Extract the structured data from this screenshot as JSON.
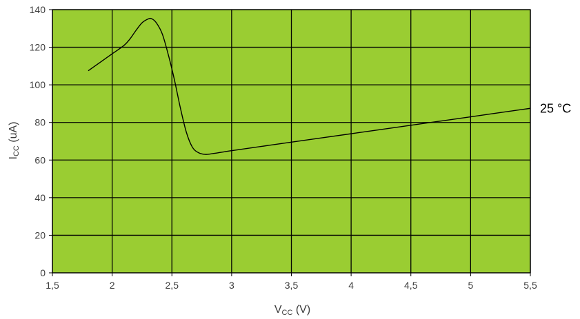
{
  "chart_data": {
    "type": "line",
    "title": "",
    "xlabel_main": "V",
    "xlabel_sub": "CC",
    "xlabel_unit": " (V)",
    "ylabel_main": "I",
    "ylabel_sub": "CC",
    "ylabel_unit": " (uA)",
    "xlim": [
      1.5,
      5.5
    ],
    "ylim": [
      0,
      140
    ],
    "x_ticks": [
      {
        "value": 1.5,
        "label": "1,5"
      },
      {
        "value": 2,
        "label": "2"
      },
      {
        "value": 2.5,
        "label": "2,5"
      },
      {
        "value": 3,
        "label": "3"
      },
      {
        "value": 3.5,
        "label": "3,5"
      },
      {
        "value": 4,
        "label": "4"
      },
      {
        "value": 4.5,
        "label": "4,5"
      },
      {
        "value": 5,
        "label": "5"
      },
      {
        "value": 5.5,
        "label": "5,5"
      }
    ],
    "y_ticks": [
      {
        "value": 0,
        "label": "0"
      },
      {
        "value": 20,
        "label": "20"
      },
      {
        "value": 40,
        "label": "40"
      },
      {
        "value": 60,
        "label": "60"
      },
      {
        "value": 80,
        "label": "80"
      },
      {
        "value": 100,
        "label": "100"
      },
      {
        "value": 120,
        "label": "120"
      },
      {
        "value": 140,
        "label": "140"
      }
    ],
    "grid": true,
    "colors": {
      "plot_bg": "#9ACD32",
      "grid": "#000000",
      "line": "#000000"
    },
    "series": [
      {
        "name": "25 °C",
        "x": [
          1.8,
          1.9,
          2.0,
          2.1,
          2.15,
          2.2,
          2.25,
          2.3,
          2.33,
          2.37,
          2.42,
          2.47,
          2.52,
          2.57,
          2.62,
          2.67,
          2.72,
          2.78,
          2.85,
          2.95,
          3.0,
          3.5,
          4.0,
          4.5,
          5.0,
          5.5
        ],
        "y": [
          107.5,
          112,
          116.5,
          121,
          124.5,
          129,
          133,
          135,
          135.2,
          133,
          127,
          116,
          103,
          88,
          75,
          67,
          64,
          63,
          63.5,
          64.5,
          65,
          69.5,
          74,
          78.5,
          83,
          87.5
        ]
      }
    ]
  }
}
